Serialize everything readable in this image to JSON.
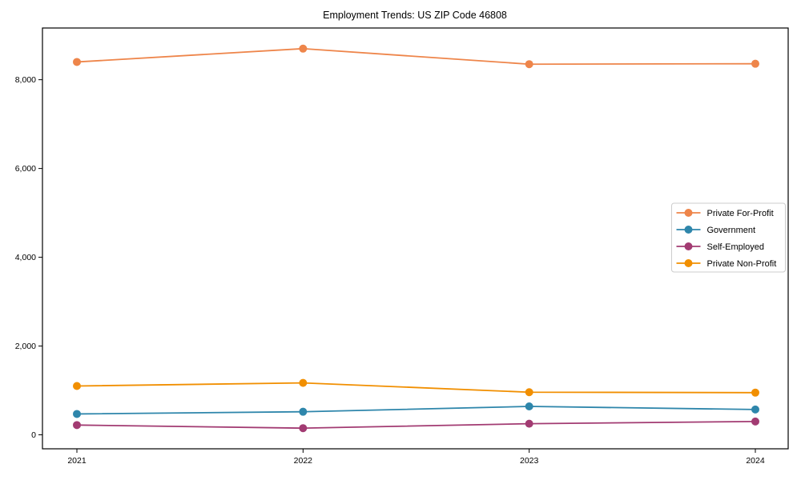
{
  "chart_data": {
    "type": "line",
    "title": "Employment Trends: US ZIP Code 46808",
    "xlabel": "",
    "ylabel": "",
    "x_categories": [
      "2021",
      "2022",
      "2023",
      "2024"
    ],
    "y_ticks": [
      0,
      2000,
      4000,
      6000,
      8000
    ],
    "y_tick_labels": [
      "0",
      "2,000",
      "4,000",
      "6,000",
      "8,000"
    ],
    "ylim": [
      -315,
      9165
    ],
    "grid": false,
    "legend_position": "center-right",
    "background_color": "#ffffff",
    "spine_color": "#000000",
    "legend_border_color": "#cccccc",
    "series": [
      {
        "name": "Private For-Profit",
        "color": "#EE854A",
        "values": [
          8400,
          8700,
          8350,
          8360
        ]
      },
      {
        "name": "Government",
        "color": "#2E86AB",
        "values": [
          470,
          520,
          640,
          570
        ]
      },
      {
        "name": "Self-Employed",
        "color": "#A23B72",
        "values": [
          220,
          150,
          250,
          300
        ]
      },
      {
        "name": "Private Non-Profit",
        "color": "#F18F01",
        "values": [
          1100,
          1170,
          960,
          950
        ]
      }
    ]
  }
}
